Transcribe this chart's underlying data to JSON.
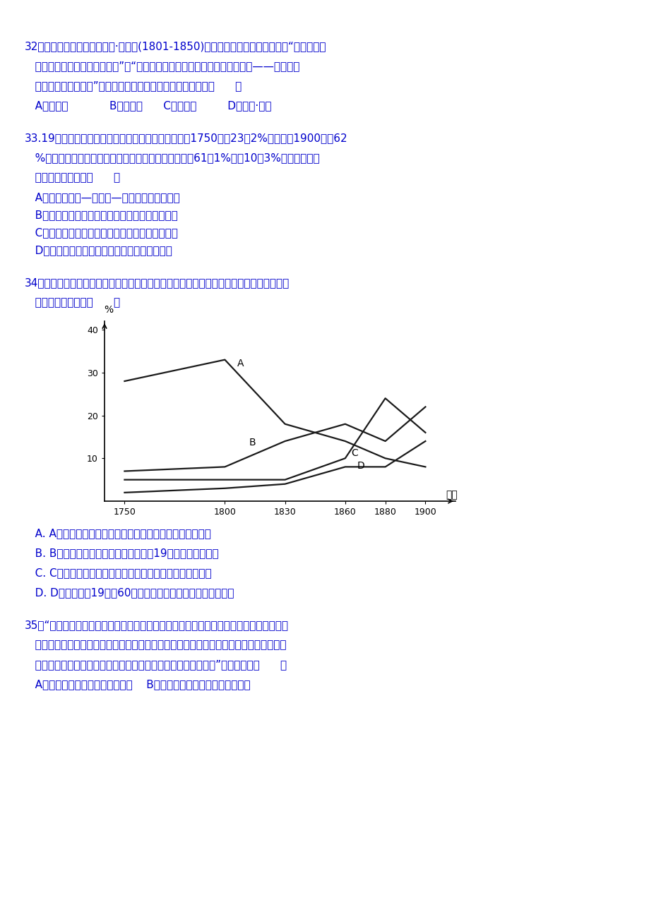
{
  "page_background": "#ffffff",
  "text_color": "#0000cc",
  "chart_line_color": "#1a1a1a",
  "x_ticks": [
    1750,
    1800,
    1830,
    1860,
    1880,
    1900
  ],
  "curve_A": {
    "x": [
      1750,
      1800,
      1830,
      1860,
      1880,
      1900
    ],
    "y": [
      28,
      33,
      18,
      14,
      10,
      8
    ]
  },
  "curve_B": {
    "x": [
      1750,
      1800,
      1830,
      1860,
      1880,
      1900
    ],
    "y": [
      7,
      8,
      14,
      18,
      14,
      22
    ]
  },
  "curve_C": {
    "x": [
      1750,
      1800,
      1830,
      1860,
      1880,
      1900
    ],
    "y": [
      5,
      5,
      5,
      10,
      24,
      16
    ]
  },
  "curve_D": {
    "x": [
      1750,
      1800,
      1830,
      1860,
      1880,
      1900
    ],
    "y": [
      2,
      3,
      4,
      8,
      8,
      14
    ]
  },
  "yticks": [
    10,
    20,
    30,
    40
  ],
  "ylim": [
    0,
    42
  ],
  "xlim": [
    1740,
    1915
  ],
  "q32_line1": "32．法国经济学家弗雷德里克·巴师夏(1801-1850)在《经济和谐》序言中写道：“政府话动基",
  "q32_line2": "   本限于保证秩序，安全和正义”。“越过这个限度，就是对良心、智力和劳动——一句话，",
  "q32_line3": "   对人类自由的侵占。”这一观点与下列哪一人物的思想相似？（      ）",
  "q32_opt": "   A．圣西门            B．马克思      C．凯恩斯         D．亚当·斯密",
  "q33_line1": "33.19世纪，欧洲地区在世界制造业产量中的比重，从1750年的23．2%上升到刂1900年的62",
  "q33_line2": "   %，同一时期中国、印度和日本等亚洲国家的比重却从61．1%降至10．3%．对这一数据",
  "q33_line3": "   的解读不正确的是（      ）",
  "q33_A": "   A．形成了中心—半边缘—边缘的世界分工体系",
  "q33_B": "   B．欧洲处于现代世界体系的主导力量和中心地位",
  "q33_C": "   C．欧洲进行了工业革命，工业文明尚未波及亚洲",
  "q33_D": "   D．欧洲造就了现代世界，现代世界造就了欧洲",
  "q34_line1": "34．下面是英、美、德、中四个国家的制造业在世界制造业产値中所占比重的曲线示意图。",
  "q34_line2": "   以下说法正确的是（      ）",
  "q34_A": "   A. A代表英国，第二次工业革命中因保守的经济政策而衰落",
  "q34_B": "   B. B代表中国，因为西方列强的侵略在19世纪后期经济衰落",
  "q34_C": "   C. C代表美国，两次工业革命中其经济都得到了迅速的发展",
  "q34_D": "   D. D代表德国，19世纪60年代完成工业革命，其后发展更迅速",
  "q35_line1": "35．“历史发展的逻辑可能是极具讽刺意味的：一方面，美国无法放弃借助苏联解体的历史",
  "q35_line2": "   契机图谋世界霸权的野心；另一方面，美国越是想称霸，越是无法实现称霸的梦想，美国",
  "q35_line3": "   称霸的结果只会加速与其它世界强国实现世界权力均衡的进程。”该材料表明（      ）",
  "q35_opt": "   A．世界格局多极化趋势不断加强    B．美国放弃霸权政策奉行单边主义"
}
